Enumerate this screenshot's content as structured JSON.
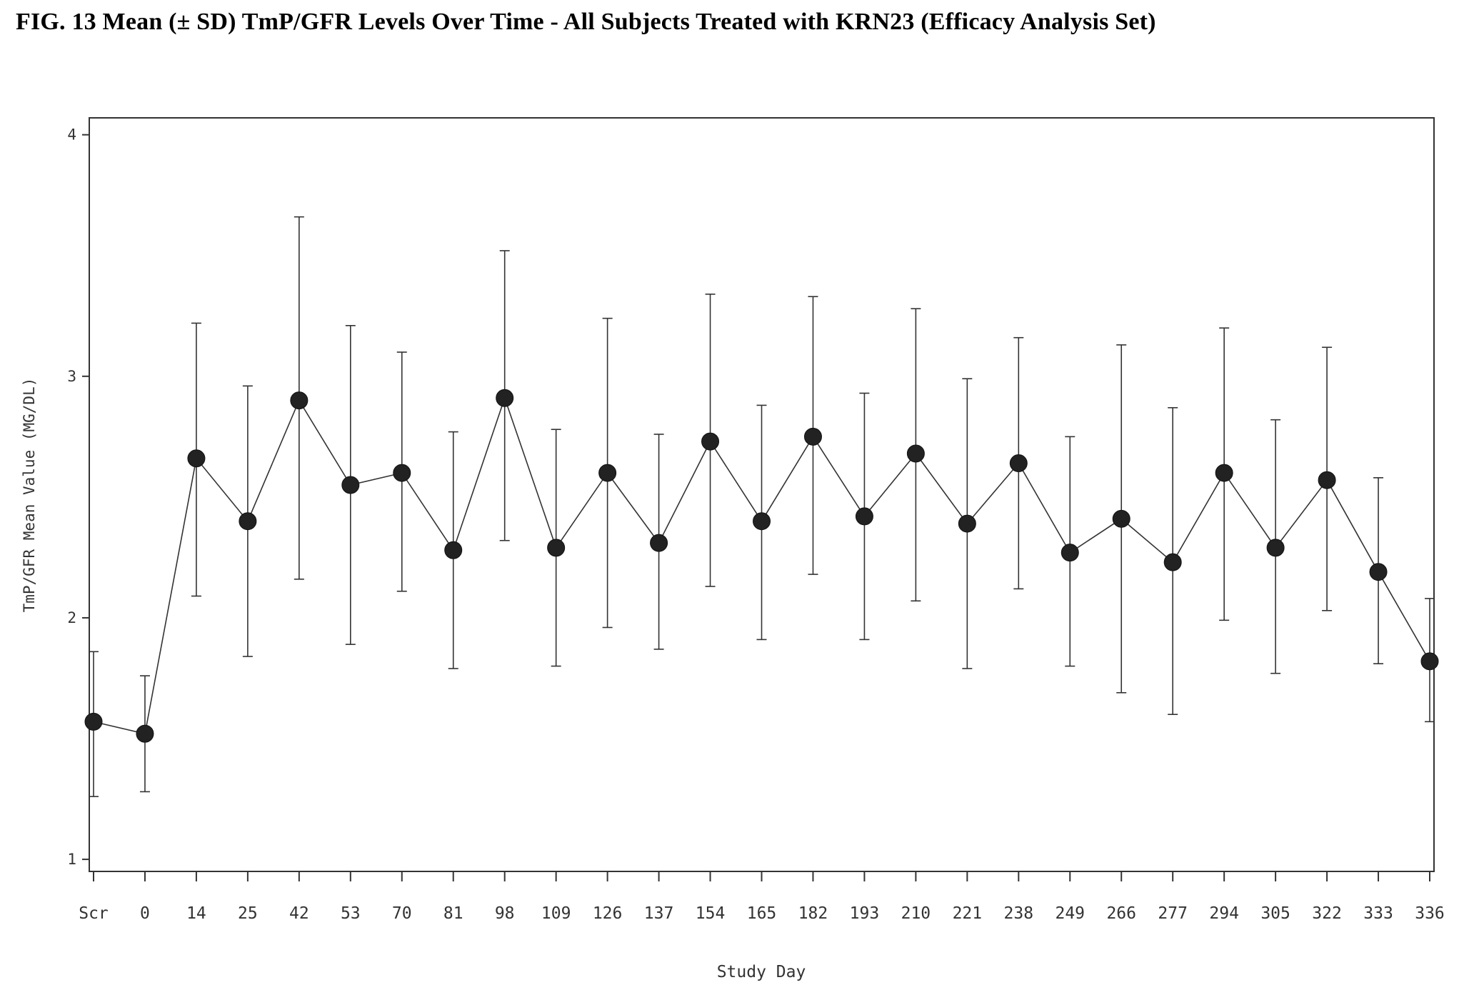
{
  "figure": {
    "title": "FIG. 13   Mean (± SD) TmP/GFR Levels Over Time - All Subjects Treated with KRN23 (Efficacy Analysis Set)"
  },
  "chart_data": {
    "type": "line",
    "title": "FIG. 13   Mean (± SD) TmP/GFR Levels Over Time - All Subjects Treated with KRN23 (Efficacy Analysis Set)",
    "xlabel": "Study Day",
    "ylabel": "TmP/GFR Mean Value (MG/DL)",
    "ylim": [
      0.95,
      4.07
    ],
    "yticks": [
      "1",
      "2",
      "3",
      "4"
    ],
    "categories": [
      "Scr",
      "0",
      "14",
      "25",
      "42",
      "53",
      "70",
      "81",
      "98",
      "109",
      "126",
      "137",
      "154",
      "165",
      "182",
      "193",
      "210",
      "221",
      "238",
      "249",
      "266",
      "277",
      "294",
      "305",
      "322",
      "333",
      "336"
    ],
    "series": [
      {
        "mean": [
          1.57,
          1.52,
          2.66,
          2.4,
          2.9,
          2.55,
          2.6,
          2.28,
          2.91,
          2.29,
          2.6,
          2.31,
          2.73,
          2.4,
          2.75,
          2.42,
          2.68,
          2.39,
          2.64,
          2.27,
          2.41,
          2.23,
          2.6,
          2.29,
          2.57,
          2.19,
          1.82
        ],
        "sd_low": [
          1.26,
          1.28,
          2.09,
          1.84,
          2.16,
          1.89,
          2.11,
          1.79,
          2.32,
          1.8,
          1.96,
          1.87,
          2.13,
          1.91,
          2.18,
          1.91,
          2.07,
          1.79,
          2.12,
          1.8,
          1.69,
          1.6,
          1.99,
          1.77,
          2.03,
          1.81,
          1.57
        ],
        "sd_high": [
          1.86,
          1.76,
          3.22,
          2.96,
          3.66,
          3.21,
          3.1,
          2.77,
          3.52,
          2.78,
          3.24,
          2.76,
          3.34,
          2.88,
          3.33,
          2.93,
          3.28,
          2.99,
          3.16,
          2.75,
          3.13,
          2.87,
          3.2,
          2.82,
          3.12,
          2.58,
          2.08
        ]
      }
    ],
    "marker": "filled-circle",
    "grid": false,
    "colors": {
      "line": "#333333",
      "marker": "#222222",
      "axis": "#333333",
      "text": "#333333"
    }
  }
}
